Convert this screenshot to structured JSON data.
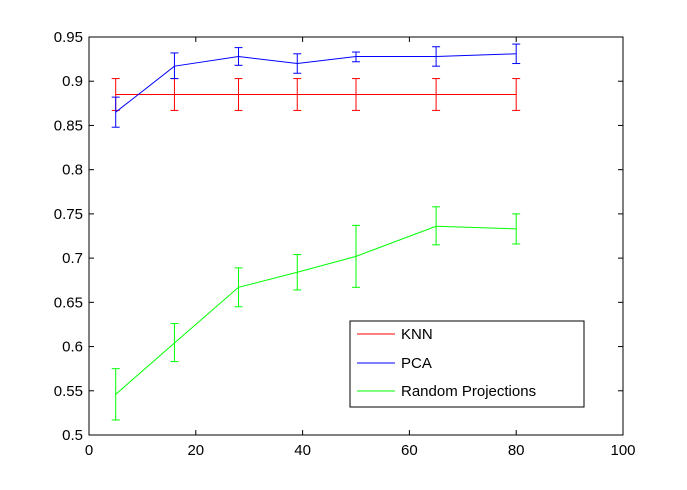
{
  "chart_data": {
    "type": "line",
    "title": "",
    "xlabel": "",
    "ylabel": "",
    "xlim": [
      0,
      100
    ],
    "ylim": [
      0.5,
      0.95
    ],
    "xticks": [
      0,
      20,
      40,
      60,
      80,
      100
    ],
    "yticks": [
      0.5,
      0.55,
      0.6,
      0.65,
      0.7,
      0.75,
      0.8,
      0.85,
      0.9,
      0.95
    ],
    "xtick_labels": [
      "0",
      "20",
      "40",
      "60",
      "80",
      "100"
    ],
    "ytick_labels": [
      "0.5",
      "0.55",
      "0.6",
      "0.65",
      "0.7",
      "0.75",
      "0.8",
      "0.85",
      "0.9",
      "0.95"
    ],
    "grid": false,
    "legend_position": "lower-right",
    "x": [
      5,
      16,
      28,
      39,
      50,
      65,
      80
    ],
    "series": [
      {
        "name": "KNN",
        "color": "#ff0000",
        "y": [
          0.885,
          0.885,
          0.885,
          0.885,
          0.885,
          0.885,
          0.885
        ],
        "lower": [
          0.867,
          0.867,
          0.867,
          0.867,
          0.867,
          0.867,
          0.867
        ],
        "upper": [
          0.903,
          0.903,
          0.903,
          0.903,
          0.903,
          0.903,
          0.903
        ]
      },
      {
        "name": "PCA",
        "color": "#0000ff",
        "y": [
          0.865,
          0.917,
          0.928,
          0.92,
          0.928,
          0.928,
          0.931
        ],
        "lower": [
          0.848,
          0.903,
          0.918,
          0.909,
          0.922,
          0.917,
          0.92
        ],
        "upper": [
          0.882,
          0.932,
          0.938,
          0.931,
          0.933,
          0.939,
          0.942
        ]
      },
      {
        "name": "Random Projections",
        "color": "#00ff00",
        "y": [
          0.546,
          0.604,
          0.667,
          0.684,
          0.702,
          0.736,
          0.733
        ],
        "lower": [
          0.517,
          0.583,
          0.645,
          0.664,
          0.667,
          0.715,
          0.716
        ],
        "upper": [
          0.575,
          0.626,
          0.689,
          0.704,
          0.737,
          0.758,
          0.75
        ]
      }
    ]
  }
}
